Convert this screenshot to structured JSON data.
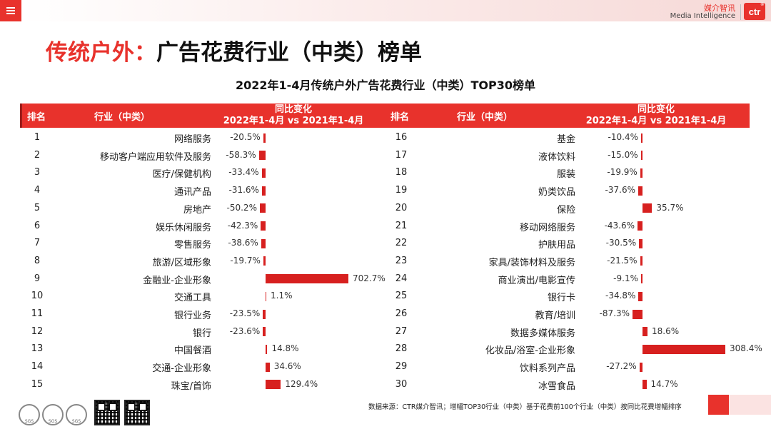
{
  "header": {
    "brand_cn": "媒介智讯",
    "brand_en": "Media Intelligence",
    "logo_text": "ctr",
    "logo_mark": "®"
  },
  "page": {
    "title_accent": "传统户外：",
    "title_rest": "广告花费行业（中类）榜单"
  },
  "table": {
    "col_rank": "排名",
    "col_industry": "行业（中类）",
    "col_change_line1": "同比变化",
    "col_change_line2": "2022年1-4月 vs 2021年1-4月"
  },
  "chart_data": {
    "type": "bar",
    "orientation": "horizontal",
    "title": "2022年1-4月传统户外广告花费行业（中类）TOP30榜单",
    "unit": "%",
    "series": [
      {
        "name": "同比变化（2022年1-4月 vs 2021年1-4月）",
        "rows": [
          {
            "rank": "1",
            "category": "网络服务",
            "value": -20.5,
            "label": "-20.5%"
          },
          {
            "rank": "2",
            "category": "移动客户端应用软件及服务",
            "value": -58.3,
            "label": "-58.3%"
          },
          {
            "rank": "3",
            "category": "医疗/保健机构",
            "value": -33.4,
            "label": "-33.4%"
          },
          {
            "rank": "4",
            "category": "通讯产品",
            "value": -31.6,
            "label": "-31.6%"
          },
          {
            "rank": "5",
            "category": "房地产",
            "value": -50.2,
            "label": "-50.2%"
          },
          {
            "rank": "6",
            "category": "娱乐休闲服务",
            "value": -42.3,
            "label": "-42.3%"
          },
          {
            "rank": "7",
            "category": "零售服务",
            "value": -38.6,
            "label": "-38.6%"
          },
          {
            "rank": "8",
            "category": "旅游/区域形象",
            "value": -19.7,
            "label": "-19.7%"
          },
          {
            "rank": "9",
            "category": "金融业-企业形象",
            "value": 702.7,
            "label": "702.7%"
          },
          {
            "rank": "10",
            "category": "交通工具",
            "value": 1.1,
            "label": "1.1%"
          },
          {
            "rank": "11",
            "category": "银行业务",
            "value": -23.5,
            "label": "-23.5%"
          },
          {
            "rank": "12",
            "category": "银行",
            "value": -23.6,
            "label": "-23.6%"
          },
          {
            "rank": "13",
            "category": "中国餐酒",
            "value": 14.8,
            "label": "14.8%"
          },
          {
            "rank": "14",
            "category": "交通-企业形象",
            "value": 34.6,
            "label": "34.6%"
          },
          {
            "rank": "15",
            "category": "珠宝/首饰",
            "value": 129.4,
            "label": "129.4%"
          }
        ]
      },
      {
        "name": "同比变化（2022年1-4月 vs 2021年1-4月）",
        "rows": [
          {
            "rank": "16",
            "category": "基金",
            "value": -10.4,
            "label": "-10.4%"
          },
          {
            "rank": "17",
            "category": "液体饮料",
            "value": -15.0,
            "label": "-15.0%"
          },
          {
            "rank": "18",
            "category": "服装",
            "value": -19.9,
            "label": "-19.9%"
          },
          {
            "rank": "19",
            "category": "奶类饮品",
            "value": -37.6,
            "label": "-37.6%"
          },
          {
            "rank": "20",
            "category": "保险",
            "value": 35.7,
            "label": "35.7%"
          },
          {
            "rank": "21",
            "category": "移动网络服务",
            "value": -43.6,
            "label": "-43.6%"
          },
          {
            "rank": "22",
            "category": "护肤用品",
            "value": -30.5,
            "label": "-30.5%"
          },
          {
            "rank": "23",
            "category": "家具/装饰材料及服务",
            "value": -21.5,
            "label": "-21.5%"
          },
          {
            "rank": "24",
            "category": "商业演出/电影宣传",
            "value": -9.1,
            "label": "-9.1%"
          },
          {
            "rank": "25",
            "category": "银行卡",
            "value": -34.8,
            "label": "-34.8%"
          },
          {
            "rank": "26",
            "category": "教育/培训",
            "value": -87.3,
            "label": "-87.3%"
          },
          {
            "rank": "27",
            "category": "数据多媒体服务",
            "value": 18.6,
            "label": "18.6%"
          },
          {
            "rank": "28",
            "category": "化妆品/浴室-企业形象",
            "value": 308.4,
            "label": "308.4%"
          },
          {
            "rank": "29",
            "category": "饮料系列产品",
            "value": -27.2,
            "label": "-27.2%"
          },
          {
            "rank": "30",
            "category": "冰雪食品",
            "value": 14.7,
            "label": "14.7%"
          }
        ]
      }
    ]
  },
  "footer": {
    "note": "数据来源：CTR媒介智讯；增幅TOP30行业（中类）基于花费前100个行业（中类）按同比花费增幅排序",
    "cert_text": "SGS"
  },
  "colors": {
    "accent": "#e8322c",
    "bar": "#d7201f"
  }
}
